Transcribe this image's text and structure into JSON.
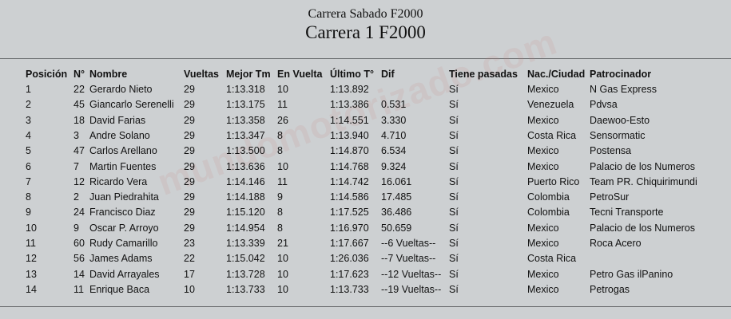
{
  "header": {
    "subtitle": "Carrera Sabado F2000",
    "title": "Carrera 1 F2000"
  },
  "watermark": "mundomotorizado.com",
  "table": {
    "columns": [
      "Posición",
      "N°",
      "Nombre",
      "Vueltas",
      "Mejor Tm",
      "En Vuelta",
      "Último T°",
      "Dif",
      "Tiene pasadas",
      "Nac./Ciudad",
      "Patrocinador"
    ],
    "rows": [
      [
        "1",
        "22",
        "Gerardo Nieto",
        "29",
        "1:13.318",
        "10",
        "1:13.892",
        "",
        "Sí",
        "Mexico",
        "N Gas Express"
      ],
      [
        "2",
        "45",
        "Giancarlo Serenelli",
        "29",
        "1:13.175",
        "11",
        "1:13.386",
        "0.531",
        "Sí",
        "Venezuela",
        "Pdvsa"
      ],
      [
        "3",
        "18",
        "David Farias",
        "29",
        "1:13.358",
        "26",
        "1:14.551",
        "3.330",
        "Sí",
        "Mexico",
        "Daewoo-Esto"
      ],
      [
        "4",
        "3",
        "Andre Solano",
        "29",
        "1:13.347",
        "8",
        "1:13.940",
        "4.710",
        "Sí",
        "Costa Rica",
        "Sensormatic"
      ],
      [
        "5",
        "47",
        "Carlos Arellano",
        "29",
        "1:13.500",
        "8",
        "1:14.870",
        "6.534",
        "Sí",
        "Mexico",
        "Postensa"
      ],
      [
        "6",
        "7",
        "Martin Fuentes",
        "29",
        "1:13.636",
        "10",
        "1:14.768",
        "9.324",
        "Sí",
        "Mexico",
        "Palacio de los Numeros"
      ],
      [
        "7",
        "12",
        "Ricardo Vera",
        "29",
        "1:14.146",
        "11",
        "1:14.742",
        "16.061",
        "Sí",
        "Puerto Rico",
        "Team PR. Chiquirimundi"
      ],
      [
        "8",
        "2",
        "Juan Piedrahita",
        "29",
        "1:14.188",
        "9",
        "1:14.586",
        "17.485",
        "Sí",
        "Colombia",
        "PetroSur"
      ],
      [
        "9",
        "24",
        "Francisco Diaz",
        "29",
        "1:15.120",
        "8",
        "1:17.525",
        "36.486",
        "Sí",
        "Colombia",
        "Tecni Transporte"
      ],
      [
        "10",
        "9",
        "Oscar P. Arroyo",
        "29",
        "1:14.954",
        "8",
        "1:16.970",
        "50.659",
        "Sí",
        "Mexico",
        "Palacio de los Numeros"
      ],
      [
        "11",
        "60",
        "Rudy Camarillo",
        "23",
        "1:13.339",
        "21",
        "1:17.667",
        "--6 Vueltas--",
        "Sí",
        "Mexico",
        "Roca Acero"
      ],
      [
        "12",
        "56",
        "James Adams",
        "22",
        "1:15.042",
        "10",
        "1:26.036",
        "--7 Vueltas--",
        "Sí",
        "Costa Rica",
        ""
      ],
      [
        "13",
        "14",
        "David Arrayales",
        "17",
        "1:13.728",
        "10",
        "1:17.623",
        "--12 Vueltas--",
        "Sí",
        "Mexico",
        "Petro Gas ilPanino"
      ],
      [
        "14",
        "11",
        "Enrique Baca",
        "10",
        "1:13.733",
        "10",
        "1:13.733",
        "--19 Vueltas--",
        "Sí",
        "Mexico",
        "Petrogas"
      ]
    ]
  }
}
